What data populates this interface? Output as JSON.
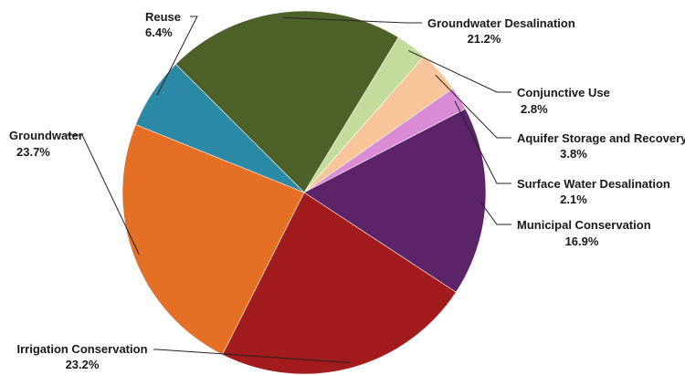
{
  "chart_data": {
    "type": "pie",
    "title": "",
    "unit": "%",
    "slices": [
      {
        "label": "Groundwater Desalination",
        "value": 21.2,
        "display": "21.2%",
        "color": "#4e6128"
      },
      {
        "label": "Conjunctive Use",
        "value": 2.8,
        "display": "2.8%",
        "color": "#c3dc9b"
      },
      {
        "label": "Aquifer Storage and Recovery",
        "value": 3.8,
        "display": "3.8%",
        "color": "#f8c59a"
      },
      {
        "label": "Surface Water Desalination",
        "value": 2.1,
        "display": "2.1%",
        "color": "#d98bd4"
      },
      {
        "label": "Municipal Conservation",
        "value": 16.9,
        "display": "16.9%",
        "color": "#5c2468"
      },
      {
        "label": "Irrigation Conservation",
        "value": 23.2,
        "display": "23.2%",
        "color": "#a21c1e"
      },
      {
        "label": "Groundwater",
        "value": 23.7,
        "display": "23.7%",
        "color": "#e46f25"
      },
      {
        "label": "Reuse",
        "value": 6.4,
        "display": "6.4%",
        "color": "#2d8aa6"
      }
    ]
  }
}
